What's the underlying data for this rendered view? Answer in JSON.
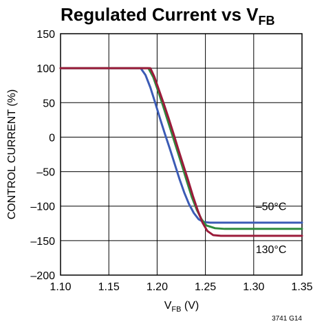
{
  "chart_data": {
    "type": "line",
    "title_main": "Regulated Current vs V",
    "title_sub": "FB",
    "xlabel_main": "V",
    "xlabel_sub": "FB",
    "xlabel_unit": " (V)",
    "ylabel": "CONTROL CURRENT (%)",
    "xlim": [
      1.1,
      1.35
    ],
    "ylim": [
      -200,
      150
    ],
    "x_ticks": [
      1.1,
      1.15,
      1.2,
      1.25,
      1.3,
      1.35
    ],
    "x_tick_labels": [
      "1.10",
      "1.15",
      "1.20",
      "1.25",
      "1.30",
      "1.35"
    ],
    "y_ticks": [
      150,
      100,
      50,
      0,
      -50,
      -100,
      -150,
      -200
    ],
    "y_tick_labels": [
      "150",
      "100",
      "50",
      "0",
      "–50",
      "–100",
      "–150",
      "–200"
    ],
    "grid": true,
    "series": [
      {
        "name": "–50°C",
        "color": "#3b5bb5",
        "x": [
          1.1,
          1.183,
          1.188,
          1.193,
          1.198,
          1.203,
          1.208,
          1.213,
          1.218,
          1.223,
          1.228,
          1.233,
          1.238,
          1.243,
          1.248,
          1.255,
          1.265,
          1.35
        ],
        "y": [
          100,
          100,
          90,
          72,
          50,
          27,
          5,
          -16,
          -38,
          -60,
          -80,
          -97,
          -110,
          -119,
          -123,
          -124,
          -124,
          -124
        ]
      },
      {
        "name": "",
        "color": "#2e8b3e",
        "x": [
          1.1,
          1.191,
          1.196,
          1.201,
          1.206,
          1.211,
          1.216,
          1.221,
          1.226,
          1.231,
          1.236,
          1.241,
          1.246,
          1.251,
          1.26,
          1.27,
          1.35
        ],
        "y": [
          100,
          100,
          87,
          67,
          46,
          24,
          2,
          -20,
          -42,
          -65,
          -87,
          -105,
          -119,
          -128,
          -132,
          -133,
          -133
        ]
      },
      {
        "name": "130°C",
        "color": "#9b1b3a",
        "x": [
          1.1,
          1.193,
          1.197,
          1.202,
          1.207,
          1.212,
          1.217,
          1.222,
          1.227,
          1.232,
          1.237,
          1.242,
          1.247,
          1.252,
          1.258,
          1.266,
          1.275,
          1.35
        ],
        "y": [
          100,
          100,
          88,
          68,
          48,
          27,
          5,
          -18,
          -40,
          -62,
          -85,
          -106,
          -124,
          -136,
          -142,
          -143,
          -143,
          -143
        ]
      }
    ],
    "annotations": [
      {
        "text": "–50°C",
        "x": 1.318,
        "y": -106
      },
      {
        "text": "130°C",
        "x": 1.318,
        "y": -168
      }
    ],
    "figure_id": "3741 G14"
  }
}
